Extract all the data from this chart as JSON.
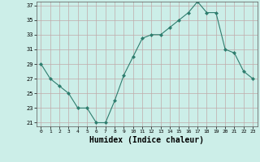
{
  "x": [
    0,
    1,
    2,
    3,
    4,
    5,
    6,
    7,
    8,
    9,
    10,
    11,
    12,
    13,
    14,
    15,
    16,
    17,
    18,
    19,
    20,
    21,
    22,
    23
  ],
  "y": [
    29,
    27,
    26,
    25,
    23,
    23,
    21,
    21,
    24,
    27.5,
    30,
    32.5,
    33,
    33,
    34,
    35,
    36,
    37.5,
    36,
    36,
    31,
    30.5,
    28,
    27
  ],
  "line_color": "#2e7d6e",
  "marker": "D",
  "marker_size": 2.0,
  "bg_color": "#cceee8",
  "grid_color": "#c0aaaa",
  "xlabel": "Humidex (Indice chaleur)",
  "xlabel_fontsize": 7,
  "ylim": [
    20.5,
    37.5
  ],
  "xlim": [
    -0.5,
    23.5
  ],
  "yticks": [
    21,
    23,
    25,
    27,
    29,
    31,
    33,
    35,
    37
  ],
  "xticks": [
    0,
    1,
    2,
    3,
    4,
    5,
    6,
    7,
    8,
    9,
    10,
    11,
    12,
    13,
    14,
    15,
    16,
    17,
    18,
    19,
    20,
    21,
    22,
    23
  ]
}
